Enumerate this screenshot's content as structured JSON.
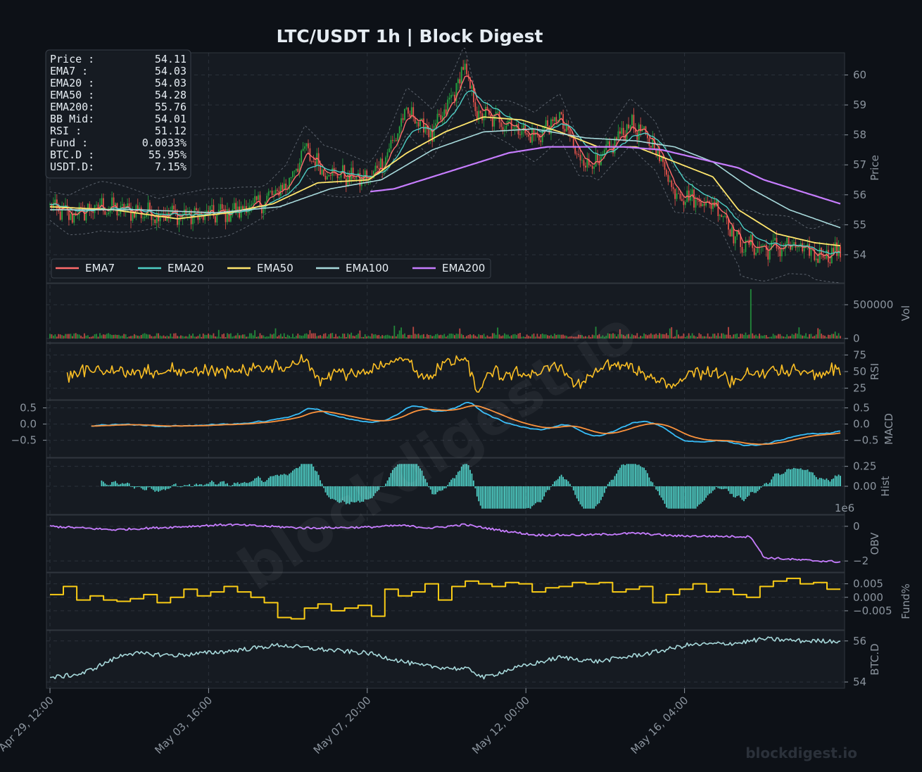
{
  "title": "LTC/USDT  1h  |  Block Digest",
  "watermark": "blockdigest.io",
  "footer_brand": "blockdigest.io",
  "colors": {
    "bg": "#0d1117",
    "panel": "#161b22",
    "grid": "#3a414b",
    "up": "#26a641",
    "down": "#e5534b",
    "ema7": "#ff6b6b",
    "ema20": "#4ecdc4",
    "ema50": "#ffe66d",
    "ema100": "#a8dadc",
    "ema200": "#c77dff",
    "rsi": "#fbbf24",
    "macd": "#38bdf8",
    "signal": "#fb923c",
    "hist": "#4ecdc4",
    "obv": "#c77dff",
    "fund": "#facc15",
    "btcd": "#a8dadc",
    "text": "#8b949e"
  },
  "info_box": [
    {
      "label": "Price :",
      "value": "54.11"
    },
    {
      "label": "EMA7  :",
      "value": "54.03"
    },
    {
      "label": "EMA20 :",
      "value": "54.03"
    },
    {
      "label": "EMA50 :",
      "value": "54.28"
    },
    {
      "label": "EMA200:",
      "value": "55.76"
    },
    {
      "label": "BB Mid:",
      "value": "54.01"
    },
    {
      "label": "RSI   :",
      "value": "51.12"
    },
    {
      "label": "Fund  :",
      "value": "0.0033%"
    },
    {
      "label": "BTC.D :",
      "value": "55.95%"
    },
    {
      "label": "USDT.D:",
      "value": "7.15%"
    }
  ],
  "legend": [
    {
      "name": "EMA7",
      "color": "#ff6b6b"
    },
    {
      "name": "EMA20",
      "color": "#4ecdc4"
    },
    {
      "name": "EMA50",
      "color": "#ffe66d"
    },
    {
      "name": "EMA100",
      "color": "#a8dadc"
    },
    {
      "name": "EMA200",
      "color": "#c77dff"
    }
  ],
  "chart_data": {
    "type": "line",
    "x_ticks": [
      "Apr 29, 12:00",
      "May 03, 16:00",
      "May 07, 20:00",
      "May 12, 00:00",
      "May 16, 04:00"
    ],
    "panels": {
      "price": {
        "ylabel": "Price",
        "ylim": [
          53.2,
          60.6
        ],
        "ticks": [
          "54",
          "55",
          "56",
          "57",
          "58",
          "59",
          "60"
        ],
        "close_keypoints": [
          [
            0,
            55.6
          ],
          [
            3,
            55.3
          ],
          [
            8,
            55.6
          ],
          [
            15,
            55.4
          ],
          [
            22,
            55.3
          ],
          [
            28,
            55.4
          ],
          [
            33,
            55.7
          ],
          [
            37,
            56.3
          ],
          [
            40,
            57.5
          ],
          [
            43,
            56.8
          ],
          [
            47,
            56.6
          ],
          [
            50,
            56.5
          ],
          [
            53,
            57.4
          ],
          [
            56,
            58.8
          ],
          [
            60,
            58.0
          ],
          [
            63,
            59.2
          ],
          [
            65,
            60.3
          ],
          [
            67,
            58.7
          ],
          [
            72,
            58.4
          ],
          [
            76,
            57.9
          ],
          [
            80,
            58.6
          ],
          [
            83,
            57.2
          ],
          [
            86,
            57.0
          ],
          [
            88,
            57.6
          ],
          [
            91,
            58.4
          ],
          [
            93,
            58.0
          ],
          [
            95,
            57.6
          ],
          [
            98,
            56.1
          ],
          [
            102,
            55.8
          ],
          [
            105,
            55.6
          ],
          [
            108,
            54.4
          ],
          [
            112,
            54.2
          ],
          [
            116,
            54.3
          ],
          [
            120,
            54.0
          ],
          [
            124,
            54.1
          ]
        ],
        "ema50_keypoints": [
          [
            0,
            55.6
          ],
          [
            10,
            55.5
          ],
          [
            20,
            55.2
          ],
          [
            28,
            55.4
          ],
          [
            35,
            55.7
          ],
          [
            42,
            56.4
          ],
          [
            50,
            56.5
          ],
          [
            56,
            57.4
          ],
          [
            62,
            58.1
          ],
          [
            68,
            58.6
          ],
          [
            74,
            58.5
          ],
          [
            80,
            58.1
          ],
          [
            86,
            57.6
          ],
          [
            92,
            57.6
          ],
          [
            98,
            57.1
          ],
          [
            104,
            56.6
          ],
          [
            108,
            55.5
          ],
          [
            114,
            54.7
          ],
          [
            120,
            54.4
          ],
          [
            124,
            54.3
          ]
        ],
        "ema100_keypoints": [
          [
            0,
            55.5
          ],
          [
            14,
            55.5
          ],
          [
            26,
            55.4
          ],
          [
            36,
            55.6
          ],
          [
            44,
            56.2
          ],
          [
            52,
            56.5
          ],
          [
            60,
            57.5
          ],
          [
            68,
            58.1
          ],
          [
            76,
            58.2
          ],
          [
            84,
            57.9
          ],
          [
            92,
            57.8
          ],
          [
            98,
            57.6
          ],
          [
            104,
            57.1
          ],
          [
            110,
            56.2
          ],
          [
            116,
            55.5
          ],
          [
            124,
            54.9
          ]
        ],
        "ema200_keypoints": [
          [
            50,
            56.1
          ],
          [
            54,
            56.2
          ],
          [
            60,
            56.6
          ],
          [
            66,
            57.0
          ],
          [
            72,
            57.4
          ],
          [
            78,
            57.6
          ],
          [
            84,
            57.6
          ],
          [
            90,
            57.6
          ],
          [
            96,
            57.5
          ],
          [
            102,
            57.2
          ],
          [
            108,
            56.9
          ],
          [
            112,
            56.5
          ],
          [
            118,
            56.1
          ],
          [
            124,
            55.7
          ]
        ]
      },
      "volume": {
        "ylabel": "Vol",
        "ticks": [
          "0",
          "500000"
        ],
        "ylim": [
          0,
          750000
        ],
        "spike": {
          "index": 110,
          "value": 730000
        }
      },
      "rsi": {
        "ylabel": "RSI",
        "ticks": [
          "25",
          "50",
          "75"
        ],
        "ylim": [
          14,
          86
        ]
      },
      "macd": {
        "ylabel": "MACD",
        "ticks": [
          "−0.5",
          "0.0",
          "0.5"
        ],
        "ylim": [
          -0.9,
          0.6
        ],
        "left_ticks": [
          "−0.5",
          "0.0",
          "0.5"
        ]
      },
      "hist": {
        "ylabel": "Hist",
        "ticks": [
          "0.00",
          "0.25"
        ],
        "ylim": [
          -0.3,
          0.3
        ]
      },
      "obv": {
        "ylabel": "OBV",
        "ticks": [
          "−2",
          "0"
        ],
        "ylim": [
          -2.4,
          0.4
        ],
        "offset_label": "1e6"
      },
      "fund": {
        "ylabel": "Fund%",
        "ticks": [
          "−0.005",
          "0.000",
          "0.005"
        ],
        "ylim": [
          -0.0105,
          0.0075
        ]
      },
      "btcd": {
        "ylabel": "BTC.D",
        "ticks": [
          "54",
          "56"
        ],
        "ylim": [
          53.9,
          56.3
        ],
        "keypoints": [
          [
            0,
            54.2
          ],
          [
            5,
            54.4
          ],
          [
            12,
            55.4
          ],
          [
            20,
            55.3
          ],
          [
            28,
            55.5
          ],
          [
            36,
            55.8
          ],
          [
            42,
            55.6
          ],
          [
            50,
            55.4
          ],
          [
            58,
            54.8
          ],
          [
            66,
            54.6
          ],
          [
            68,
            54.2
          ],
          [
            72,
            54.6
          ],
          [
            80,
            55.2
          ],
          [
            86,
            55.0
          ],
          [
            94,
            55.4
          ],
          [
            100,
            55.8
          ],
          [
            108,
            55.9
          ],
          [
            112,
            56.1
          ],
          [
            118,
            56.0
          ],
          [
            124,
            56.0
          ]
        ]
      }
    }
  }
}
